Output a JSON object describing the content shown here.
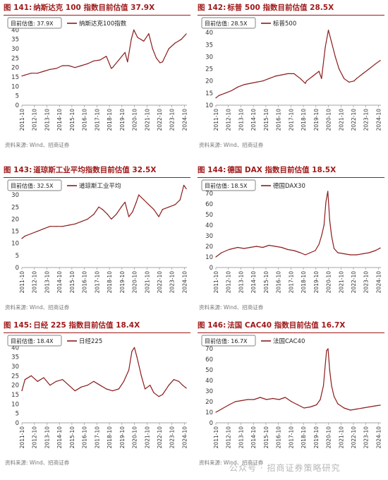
{
  "watermark": "公众号 · 招商证券策略研究",
  "line_color": "#8b1a1a",
  "title_color": "#a01a1a",
  "chart_data": [
    {
      "id": "c141",
      "type": "line",
      "figure_no": "图 141:",
      "title": "纳斯达克 100 指数目前估值 37.9X",
      "legend_box": "目前估值: 37.9X",
      "series": [
        {
          "name": "纳斯达克100指数"
        }
      ],
      "ylim": [
        0,
        45
      ],
      "yticks": [
        0,
        5,
        10,
        15,
        20,
        25,
        30,
        35,
        40,
        45
      ],
      "xlabels": [
        "2011-10",
        "2012-10",
        "2013-10",
        "2014-10",
        "2015-10",
        "2016-10",
        "2017-10",
        "2018-10",
        "2019-10",
        "2020-10",
        "2021-10",
        "2022-10",
        "2023-10",
        "2024-10"
      ],
      "source": "资料来源: Wind、招商证券",
      "x": [
        2011.75,
        2012.0,
        2012.5,
        2013.0,
        2013.5,
        2014.0,
        2014.5,
        2015.0,
        2015.5,
        2016.0,
        2016.5,
        2017.0,
        2017.5,
        2018.0,
        2018.5,
        2018.9,
        2019.0,
        2019.5,
        2020.0,
        2020.2,
        2020.5,
        2020.7,
        2021.0,
        2021.5,
        2021.9,
        2022.2,
        2022.5,
        2022.8,
        2023.0,
        2023.5,
        2024.0,
        2024.5,
        2024.9
      ],
      "values": [
        15.5,
        16,
        17,
        17,
        18,
        19,
        19.5,
        21,
        21,
        20,
        21,
        22,
        23.5,
        24,
        26,
        19.5,
        20,
        24,
        28,
        23,
        35,
        40,
        36,
        34,
        38,
        30,
        25,
        22.5,
        23,
        30,
        33,
        35,
        37.9
      ]
    },
    {
      "id": "c142",
      "type": "line",
      "figure_no": "图 142:",
      "title": "标普 500 指数目前估值 28.5X",
      "legend_box": "目前估值: 28.5X",
      "series": [
        {
          "name": "标普500"
        }
      ],
      "ylim": [
        10,
        45
      ],
      "yticks": [
        10,
        15,
        20,
        25,
        30,
        35,
        40,
        45
      ],
      "xlabels": [
        "2011-10",
        "2012-10",
        "2013-10",
        "2014-10",
        "2015-10",
        "2016-10",
        "2017-10",
        "2018-10",
        "2019-10",
        "2020-10",
        "2021-10",
        "2022-10",
        "2023-10",
        "2024-10"
      ],
      "source": "资料来源: Wind、招商证券",
      "x": [
        2011.75,
        2012.0,
        2012.5,
        2013.0,
        2013.5,
        2014.0,
        2014.5,
        2015.0,
        2015.5,
        2016.0,
        2016.5,
        2017.0,
        2017.5,
        2018.0,
        2018.5,
        2018.9,
        2019.0,
        2019.5,
        2020.0,
        2020.2,
        2020.5,
        2020.75,
        2021.0,
        2021.3,
        2021.6,
        2022.0,
        2022.4,
        2022.8,
        2023.0,
        2023.5,
        2024.0,
        2024.5,
        2024.9
      ],
      "values": [
        13,
        14,
        15,
        16,
        17.5,
        18.5,
        19,
        19.5,
        20,
        21,
        22,
        22.5,
        23,
        23,
        21,
        19,
        20,
        22,
        24,
        21,
        34,
        41,
        36,
        30,
        25,
        21,
        19.5,
        20,
        21,
        23,
        25,
        27,
        28.5
      ]
    },
    {
      "id": "c143",
      "type": "line",
      "figure_no": "图 143:",
      "title": "道琼斯工业平均指数目前估值 32.5X",
      "legend_box": "目前估值: 32.5X",
      "series": [
        {
          "name": "道琼斯工业平均"
        }
      ],
      "ylim": [
        0,
        35
      ],
      "yticks": [
        0,
        5,
        10,
        15,
        20,
        25,
        30,
        35
      ],
      "xlabels": [
        "2011-10",
        "2012-10",
        "2013-10",
        "2014-10",
        "2015-10",
        "2016-10",
        "2017-10",
        "2018-10",
        "2019-10",
        "2020-10",
        "2021-10",
        "2022-10",
        "2023-10",
        "2024-10"
      ],
      "source": "资料来源: Wind、招商证券",
      "x": [
        2011.75,
        2012.0,
        2012.5,
        2013.0,
        2013.5,
        2014.0,
        2014.5,
        2015.0,
        2015.5,
        2016.0,
        2016.5,
        2017.0,
        2017.5,
        2017.9,
        2018.2,
        2018.6,
        2018.9,
        2019.3,
        2019.7,
        2020.0,
        2020.3,
        2020.6,
        2020.9,
        2021.1,
        2021.5,
        2021.9,
        2022.3,
        2022.7,
        2023.0,
        2023.5,
        2024.0,
        2024.4,
        2024.7,
        2024.9
      ],
      "values": [
        12,
        13,
        14,
        15,
        16,
        17,
        17,
        17,
        17.5,
        18,
        19,
        20,
        22,
        25,
        24,
        22,
        20,
        22,
        25,
        27,
        21,
        23,
        27,
        30,
        28,
        26,
        24,
        21,
        24,
        25,
        26,
        28,
        34,
        32.5
      ]
    },
    {
      "id": "c144",
      "type": "line",
      "figure_no": "图 144:",
      "title": "德国 DAX 指数目前估值 18.5X",
      "legend_box": "目前估值: 18.5X",
      "series": [
        {
          "name": "德国DAX30"
        }
      ],
      "ylim": [
        0,
        80
      ],
      "yticks": [
        0,
        10,
        20,
        30,
        40,
        50,
        60,
        70,
        80
      ],
      "xlabels": [
        "2011-10",
        "2012-10",
        "2013-10",
        "2014-10",
        "2015-10",
        "2016-10",
        "2017-10",
        "2018-10",
        "2019-10",
        "2020-10",
        "2021-10",
        "2022-10",
        "2023-10",
        "2024-10"
      ],
      "source": "资料来源: Wind、招商证券",
      "x": [
        2011.75,
        2012.2,
        2012.8,
        2013.5,
        2014.0,
        2014.5,
        2015.0,
        2015.5,
        2016.0,
        2016.5,
        2017.0,
        2017.5,
        2018.0,
        2018.5,
        2018.9,
        2019.3,
        2019.7,
        2020.0,
        2020.2,
        2020.4,
        2020.55,
        2020.7,
        2020.85,
        2021.0,
        2021.2,
        2021.5,
        2022.0,
        2022.5,
        2023.0,
        2023.5,
        2024.0,
        2024.5,
        2024.9
      ],
      "values": [
        10,
        14,
        17,
        19,
        18,
        19,
        20,
        19,
        21,
        20,
        19,
        17,
        16,
        14,
        12,
        14,
        16,
        22,
        30,
        40,
        62,
        72,
        45,
        30,
        18,
        14,
        13,
        12,
        12,
        13,
        14,
        16,
        18.5
      ]
    },
    {
      "id": "c145",
      "type": "line",
      "figure_no": "图 145:",
      "title": "日经 225 指数目前估值 18.4X",
      "legend_box": "目前估值: 18.4X",
      "series": [
        {
          "name": "日经225"
        }
      ],
      "ylim": [
        0,
        45
      ],
      "yticks": [
        0,
        5,
        10,
        15,
        20,
        25,
        30,
        35,
        40,
        45
      ],
      "xlabels": [
        "2011-10",
        "2012-10",
        "2013-10",
        "2014-10",
        "2015-10",
        "2016-10",
        "2017-10",
        "2018-10",
        "2019-10",
        "2020-10",
        "2021-10",
        "2022-10",
        "2023-10",
        "2024-10"
      ],
      "source": "资料来源: Wind、招商证券",
      "x": [
        2011.75,
        2012.0,
        2012.5,
        2013.0,
        2013.5,
        2014.0,
        2014.5,
        2015.0,
        2015.5,
        2016.0,
        2016.5,
        2017.0,
        2017.5,
        2018.0,
        2018.5,
        2019.0,
        2019.5,
        2019.9,
        2020.3,
        2020.55,
        2020.75,
        2020.95,
        2021.3,
        2021.6,
        2022.0,
        2022.3,
        2022.7,
        2023.0,
        2023.5,
        2023.9,
        2024.3,
        2024.6,
        2024.9
      ],
      "values": [
        17,
        23,
        25,
        22,
        24,
        20,
        22,
        23,
        20,
        17,
        19,
        20,
        22,
        20,
        18,
        17,
        18,
        22,
        28,
        38,
        40,
        35,
        25,
        18,
        20,
        16,
        14,
        15,
        20,
        23,
        22,
        20,
        18.4
      ]
    },
    {
      "id": "c146",
      "type": "line",
      "figure_no": "图 146:",
      "title": "法国 CAC40 指数目前估值 16.7X",
      "legend_box": "目前估值: 16.7X",
      "series": [
        {
          "name": "法国CAC40"
        }
      ],
      "ylim": [
        0,
        80
      ],
      "yticks": [
        0,
        10,
        20,
        30,
        40,
        50,
        60,
        70,
        80
      ],
      "xlabels": [
        "2011-10",
        "2012-10",
        "2013-10",
        "2014-10",
        "2015-10",
        "2016-10",
        "2017-10",
        "2018-10",
        "2019-10",
        "2020-10",
        "2021-10",
        "2022-10",
        "2023-10",
        "2024-10"
      ],
      "source": "资料来源: Wind、招商证券",
      "x": [
        2011.75,
        2012.2,
        2012.8,
        2013.3,
        2013.8,
        2014.3,
        2014.8,
        2015.3,
        2015.8,
        2016.3,
        2016.8,
        2017.3,
        2017.8,
        2018.3,
        2018.8,
        2019.3,
        2019.8,
        2020.1,
        2020.35,
        2020.5,
        2020.6,
        2020.72,
        2020.85,
        2021.0,
        2021.2,
        2021.5,
        2022.0,
        2022.5,
        2023.0,
        2023.5,
        2024.0,
        2024.5,
        2024.9
      ],
      "values": [
        10,
        13,
        17,
        20,
        21,
        22,
        22,
        24,
        22,
        23,
        22,
        24,
        20,
        17,
        14,
        15,
        17,
        22,
        35,
        55,
        68,
        70,
        50,
        35,
        25,
        18,
        14,
        12,
        13,
        14,
        15,
        16,
        16.7
      ]
    }
  ]
}
